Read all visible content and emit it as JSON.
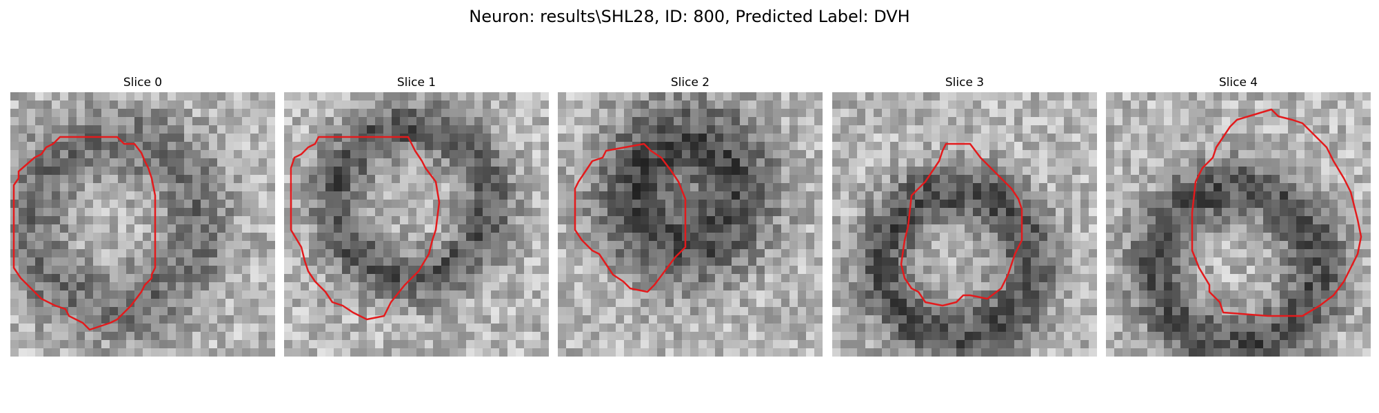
{
  "figure": {
    "title": "Neuron: results\\SHL28, ID: 800, Predicted Label: DVH"
  },
  "panels": [
    {
      "title": "Slice 0"
    },
    {
      "title": "Slice 1"
    },
    {
      "title": "Slice 2"
    },
    {
      "title": "Slice 3"
    },
    {
      "title": "Slice 4"
    }
  ],
  "image_grid": {
    "cells_per_side": 32
  },
  "colors": {
    "contour": "#e31a1c",
    "background": "#ffffff"
  }
}
